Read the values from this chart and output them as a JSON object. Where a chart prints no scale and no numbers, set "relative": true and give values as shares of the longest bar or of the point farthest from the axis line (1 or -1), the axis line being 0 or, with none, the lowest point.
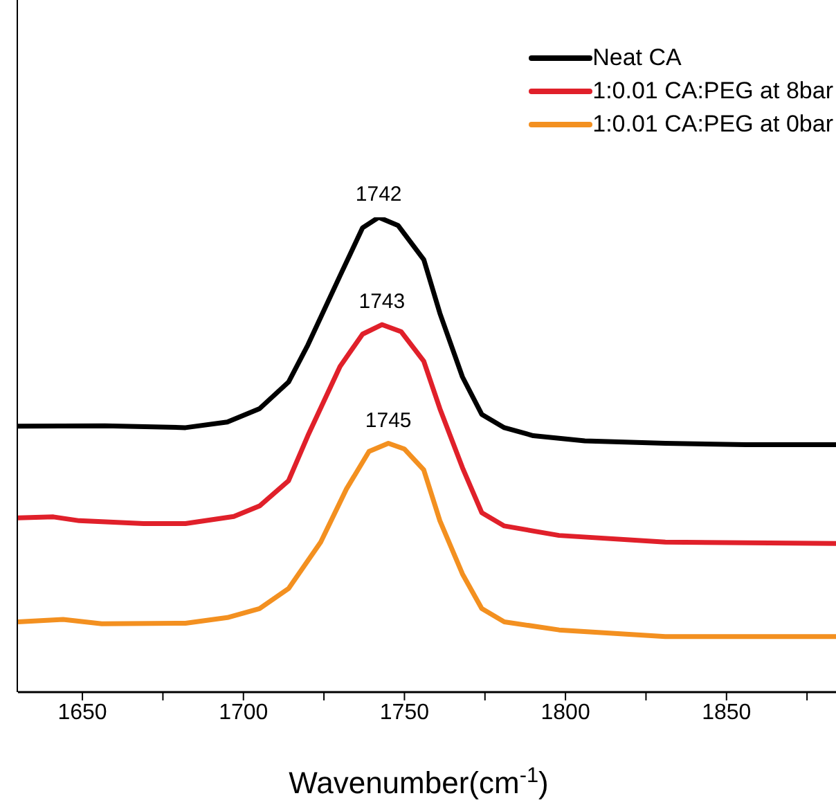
{
  "chart_data": {
    "type": "line",
    "relative": true,
    "xlabel": "Wavenumber(cm$^{-1}$)",
    "xlim": [
      1630,
      1884
    ],
    "xticks": [
      1650,
      {
        "value": 1675,
        "label": null
      },
      1700,
      {
        "value": 1725,
        "label": null
      },
      1750,
      {
        "value": 1775,
        "label": null
      },
      1800,
      {
        "value": 1825,
        "label": null
      },
      1850,
      {
        "value": 1875,
        "label": null
      }
    ],
    "legend": "top right",
    "marker": "none",
    "line_style": "solid",
    "series": [
      {
        "name": "Neat CA",
        "color": "#000000",
        "x": [
          1630,
          1657,
          1682,
          1695,
          1705,
          1714,
          1720,
          1730,
          1737,
          1742,
          1748,
          1756,
          1761,
          1768,
          1774,
          1781,
          1790,
          1806,
          1831,
          1856,
          1884
        ],
        "values": [
          0.56,
          0.561,
          0.557,
          0.569,
          0.597,
          0.653,
          0.731,
          0.877,
          0.978,
          1.0,
          0.983,
          0.911,
          0.798,
          0.664,
          0.585,
          0.557,
          0.54,
          0.529,
          0.524,
          0.521,
          0.521
        ]
      },
      {
        "name": "1:0.01 CA:PEG at 8bar",
        "color": "#e0202a",
        "x": [
          1630,
          1641,
          1649,
          1669,
          1682,
          1697,
          1705,
          1714,
          1720,
          1730,
          1737,
          1743,
          1749,
          1756,
          1761,
          1768,
          1774,
          1781,
          1798,
          1831,
          1884
        ],
        "values": [
          0.367,
          0.369,
          0.361,
          0.355,
          0.355,
          0.37,
          0.392,
          0.445,
          0.54,
          0.686,
          0.754,
          0.774,
          0.759,
          0.697,
          0.597,
          0.473,
          0.378,
          0.35,
          0.33,
          0.316,
          0.313
        ]
      },
      {
        "name": "1:0.01 CA:PEG at 0bar",
        "color": "#f39020",
        "x": [
          1630,
          1644,
          1656,
          1682,
          1695,
          1705,
          1714,
          1724,
          1732,
          1739,
          1745,
          1750,
          1756,
          1761,
          1768,
          1774,
          1781,
          1798,
          1831,
          1884
        ],
        "values": [
          0.148,
          0.153,
          0.144,
          0.145,
          0.157,
          0.176,
          0.218,
          0.316,
          0.428,
          0.507,
          0.524,
          0.512,
          0.468,
          0.361,
          0.249,
          0.176,
          0.148,
          0.131,
          0.117,
          0.117
        ]
      }
    ],
    "annotations": [
      {
        "text": "1742",
        "x": 1742,
        "y": 1.0
      },
      {
        "text": "1743",
        "x": 1743,
        "y": 0.774
      },
      {
        "text": "1745",
        "x": 1745,
        "y": 0.524
      }
    ]
  }
}
